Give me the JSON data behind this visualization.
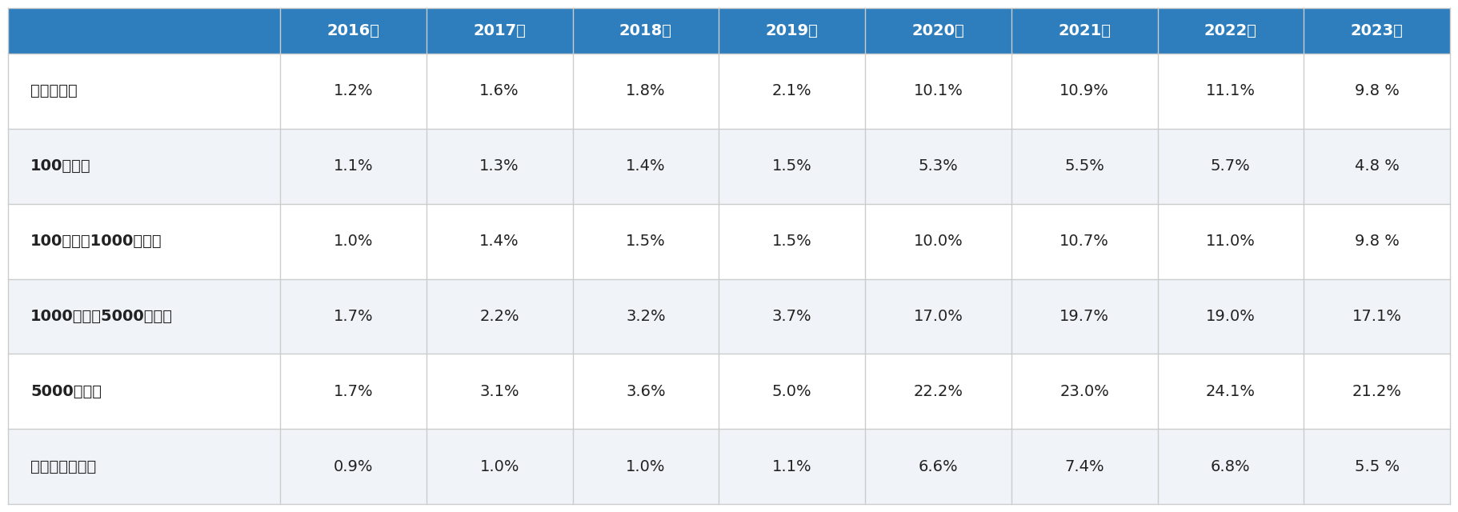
{
  "columns": [
    "2016年",
    "2017年",
    "2018年",
    "2019年",
    "2020年",
    "2021年",
    "2022年",
    "2023年"
  ],
  "rows": [
    {
      "label": "雇用者・計",
      "values": [
        "1.2%",
        "1.6%",
        "1.8%",
        "2.1%",
        "10.1%",
        "10.9%",
        "11.1%",
        "9.8 %"
      ]
    },
    {
      "label": "100人未満",
      "values": [
        "1.1%",
        "1.3%",
        "1.4%",
        "1.5%",
        "5.3%",
        "5.5%",
        "5.7%",
        "4.8 %"
      ]
    },
    {
      "label": "100人以上1000人未満",
      "values": [
        "1.0%",
        "1.4%",
        "1.5%",
        "1.5%",
        "10.0%",
        "10.7%",
        "11.0%",
        "9.8 %"
      ]
    },
    {
      "label": "1000人以上5000人未満",
      "values": [
        "1.7%",
        "2.2%",
        "3.2%",
        "3.7%",
        "17.0%",
        "19.7%",
        "19.0%",
        "17.1%"
      ]
    },
    {
      "label": "5000人以上",
      "values": [
        "1.7%",
        "3.1%",
        "3.6%",
        "5.0%",
        "22.2%",
        "23.0%",
        "24.1%",
        "21.2%"
      ]
    },
    {
      "label": "公務（官公庁）",
      "values": [
        "0.9%",
        "1.0%",
        "1.0%",
        "1.1%",
        "6.6%",
        "7.4%",
        "6.8%",
        "5.5 %"
      ]
    }
  ],
  "header_bg": "#2E7EBE",
  "header_text_color": "#FFFFFF",
  "row_bg_odd": "#FFFFFF",
  "row_bg_even": "#F0F4F8",
  "cell_text_color": "#222222",
  "divider_color": "#CCCCCC",
  "header_fontsize": 14,
  "cell_fontsize": 14,
  "label_fontsize": 14
}
